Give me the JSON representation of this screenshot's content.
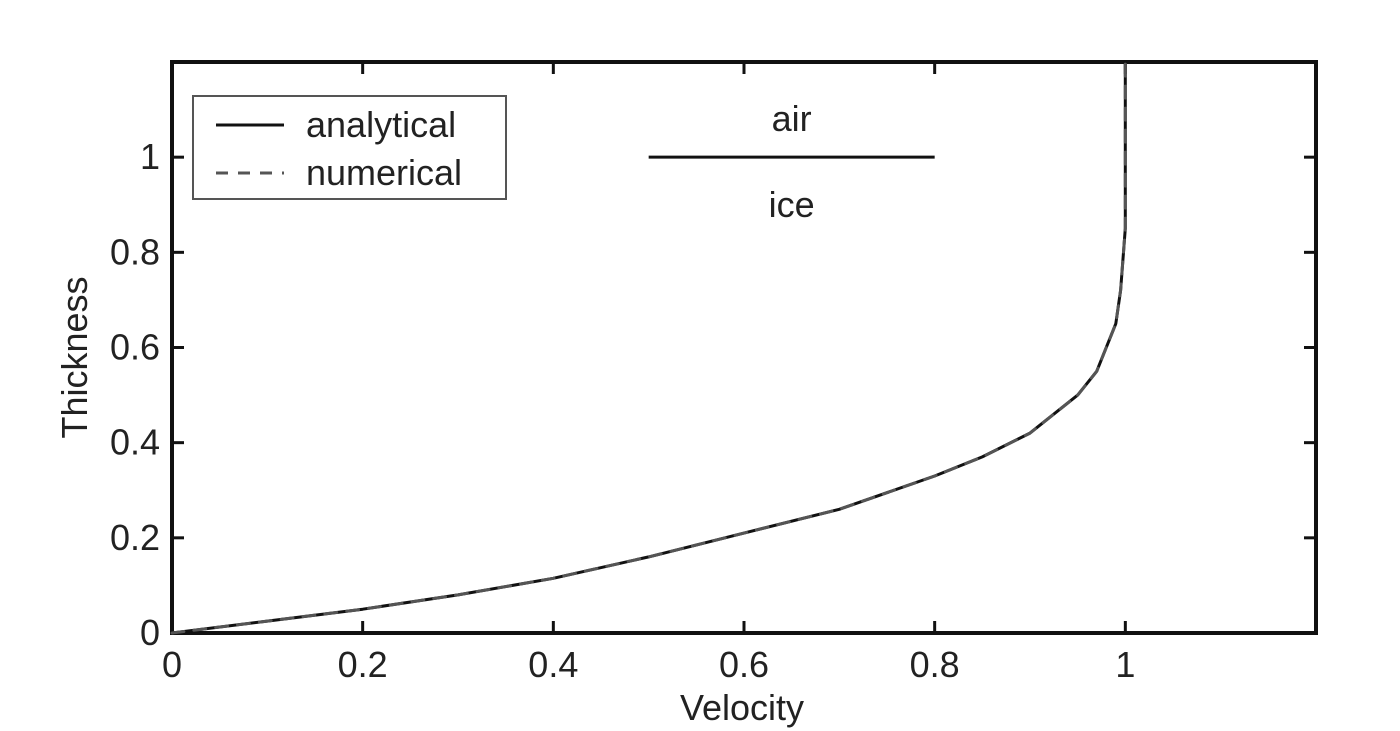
{
  "chart_data": {
    "type": "line",
    "title": "",
    "xlabel": "Velocity",
    "ylabel": "Thickness",
    "xlim": [
      0,
      1.2
    ],
    "ylim": [
      0,
      1.2
    ],
    "xticks": [
      0,
      0.2,
      0.4,
      0.6,
      0.8,
      1
    ],
    "yticks": [
      0,
      0.2,
      0.4,
      0.6,
      0.8,
      1
    ],
    "xtick_labels": [
      "0",
      "0.2",
      "0.4",
      "0.6",
      "0.8",
      "1"
    ],
    "ytick_labels": [
      "0",
      "0.2",
      "0.4",
      "0.6",
      "0.8",
      "1"
    ],
    "grid": false,
    "legend": {
      "placement": "top-left"
    },
    "series": [
      {
        "name": "analytical",
        "style": "solid",
        "color": "#111111",
        "x": [
          0,
          0.1,
          0.2,
          0.3,
          0.4,
          0.5,
          0.6,
          0.7,
          0.8,
          0.85,
          0.9,
          0.95,
          0.97,
          0.99,
          0.995,
          1.0,
          1.0,
          1.0
        ],
        "y": [
          0,
          0.025,
          0.05,
          0.08,
          0.115,
          0.16,
          0.21,
          0.26,
          0.33,
          0.37,
          0.42,
          0.5,
          0.55,
          0.65,
          0.72,
          0.85,
          1.0,
          1.2
        ]
      },
      {
        "name": "numerical",
        "style": "dashed",
        "color": "#555555",
        "x": [
          0,
          0.1,
          0.2,
          0.3,
          0.4,
          0.5,
          0.6,
          0.7,
          0.8,
          0.85,
          0.9,
          0.95,
          0.97,
          0.99,
          0.995,
          1.0,
          1.0,
          1.0
        ],
        "y": [
          0,
          0.025,
          0.05,
          0.08,
          0.115,
          0.16,
          0.21,
          0.26,
          0.33,
          0.37,
          0.42,
          0.5,
          0.55,
          0.65,
          0.72,
          0.85,
          1.0,
          1.2
        ]
      }
    ],
    "annotations": {
      "interface_line": {
        "x": [
          0.5,
          0.8
        ],
        "y": 1.0
      },
      "above_label": {
        "text": "air",
        "x": 0.65,
        "y": 1.08
      },
      "below_label": {
        "text": "ice",
        "x": 0.65,
        "y": 0.9
      }
    }
  }
}
